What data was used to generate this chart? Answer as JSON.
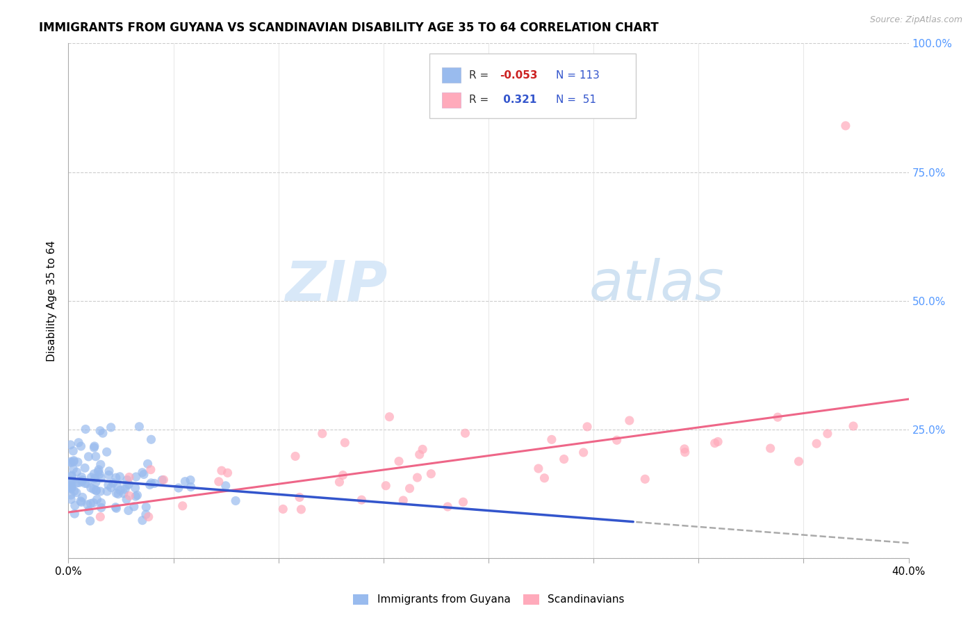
{
  "title": "IMMIGRANTS FROM GUYANA VS SCANDINAVIAN DISABILITY AGE 35 TO 64 CORRELATION CHART",
  "source": "Source: ZipAtlas.com",
  "ylabel": "Disability Age 35 to 64",
  "xlim": [
    0.0,
    0.4
  ],
  "ylim": [
    0.0,
    1.0
  ],
  "xticks": [
    0.0,
    0.05,
    0.1,
    0.15,
    0.2,
    0.25,
    0.3,
    0.35,
    0.4
  ],
  "xticklabels": [
    "0.0%",
    "",
    "",
    "",
    "",
    "",
    "",
    "",
    "40.0%"
  ],
  "yticks": [
    0.0,
    0.25,
    0.5,
    0.75,
    1.0
  ],
  "right_yticklabels": [
    "",
    "25.0%",
    "50.0%",
    "75.0%",
    "100.0%"
  ],
  "right_ytick_color": "#5599ff",
  "blue_dot_color": "#99bbee",
  "pink_dot_color": "#ffaabb",
  "blue_line_color": "#3355cc",
  "pink_line_color": "#ee6688",
  "watermark_zip": "ZIP",
  "watermark_atlas": "atlas",
  "background_color": "#ffffff",
  "legend_box_color": "#ffffff",
  "legend_edge_color": "#cccccc",
  "r1_value": "-0.053",
  "r1_color": "#cc2222",
  "r2_value": "0.321",
  "r2_color": "#3355cc",
  "n_color": "#3355cc",
  "seed": 17
}
